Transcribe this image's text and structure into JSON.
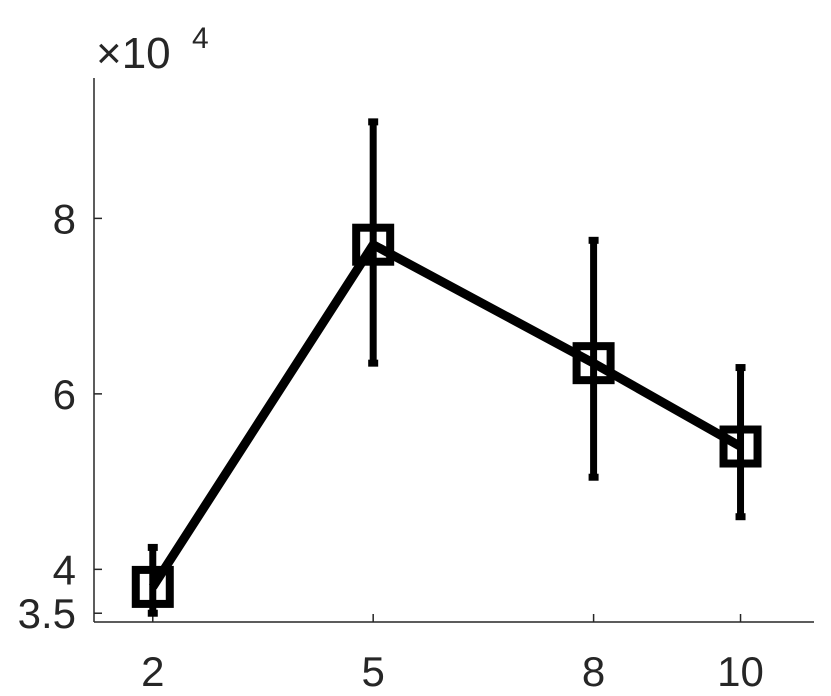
{
  "chart_data": {
    "type": "line",
    "title": "",
    "xlabel": "",
    "ylabel": "",
    "x": [
      2,
      5,
      8,
      10
    ],
    "series": [
      {
        "values": [
          38000,
          77000,
          63500,
          54000
        ],
        "error_low": [
          35000,
          63500,
          50500,
          46000
        ],
        "error_high": [
          42500,
          91000,
          77500,
          63000
        ],
        "marker": "square",
        "color": "#000000"
      }
    ],
    "xticks": [
      2,
      5,
      8,
      10
    ],
    "xtick_labels": [
      "2",
      "5",
      "8",
      "10"
    ],
    "yticks": [
      35000,
      40000,
      60000,
      80000
    ],
    "ytick_labels": [
      "3.5",
      "4",
      "6",
      "8"
    ],
    "y_exponent": {
      "base": "×10",
      "power": "4"
    },
    "xlim": [
      1.2,
      11
    ],
    "ylim": [
      34000,
      96000
    ],
    "grid": false,
    "legend": "none",
    "colors": {
      "axis": "#262626",
      "series": "#000000"
    }
  }
}
